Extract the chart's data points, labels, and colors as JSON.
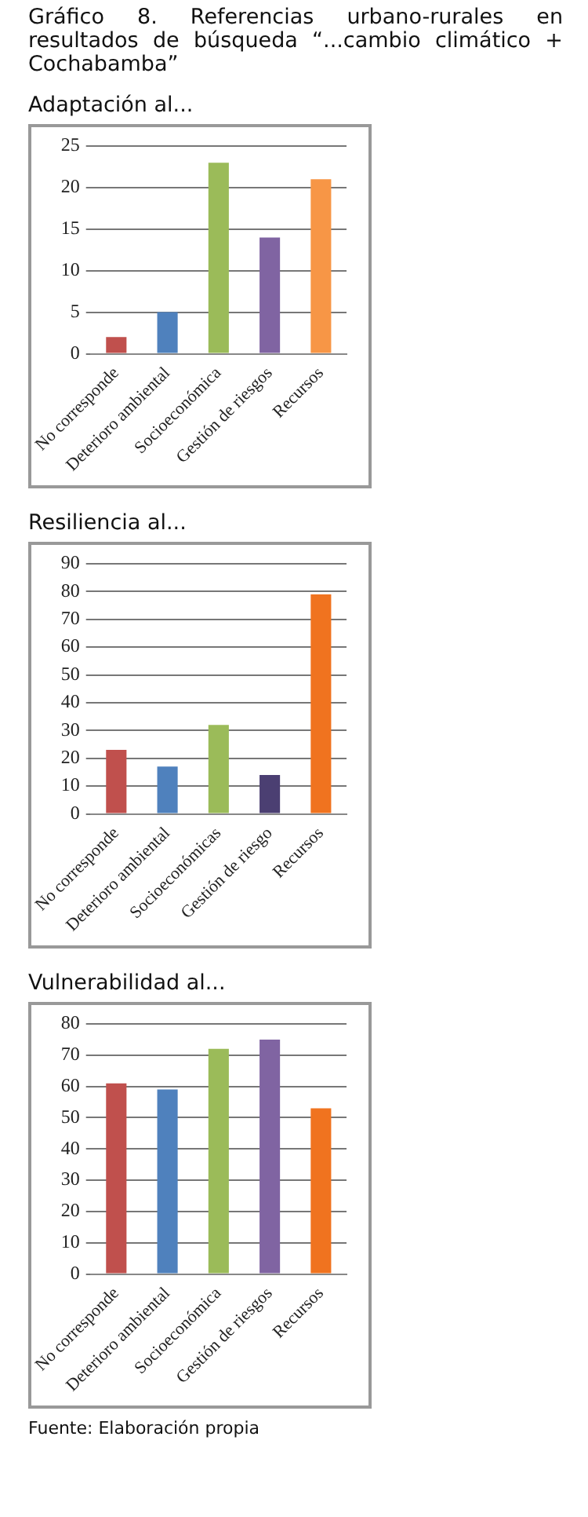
{
  "chart_data": [
    {
      "type": "bar",
      "title": "Gráfico 8. Referencias urbano-rurales en resultados de búsqueda “...cambio climático + Cochabamba”",
      "subtitle": "Adaptación al...",
      "categories": [
        "No corresponde",
        "Deterioro ambiental",
        "Socioeconómica",
        "Gestión de riesgos",
        "Recursos"
      ],
      "values": [
        2,
        5,
        23,
        14,
        21
      ],
      "colors": [
        "#c0504d",
        "#4f81bd",
        "#9bbb59",
        "#8064a2",
        "#f79646"
      ],
      "ylim": [
        0,
        25
      ],
      "yticks": [
        0,
        5,
        10,
        15,
        20,
        25
      ],
      "grid": "y",
      "legend": false
    },
    {
      "type": "bar",
      "subtitle": "Resiliencia al...",
      "categories": [
        "No corresponde",
        "Deterioro ambiental",
        "Socioeconómicas",
        "Gestión de riesgo",
        "Recursos"
      ],
      "values": [
        23,
        17,
        32,
        14,
        79
      ],
      "colors": [
        "#c0504d",
        "#4f81bd",
        "#9bbb59",
        "#4b3f72",
        "#f0731f"
      ],
      "ylim": [
        0,
        90
      ],
      "yticks": [
        0,
        10,
        20,
        30,
        40,
        50,
        60,
        70,
        80,
        90
      ],
      "grid": "y",
      "legend": false
    },
    {
      "type": "bar",
      "subtitle": "Vulnerabilidad al...",
      "categories": [
        "No corresponde",
        "Deterioro ambiental",
        "Socioeconómica",
        "Gestión de riesgos",
        "Recursos"
      ],
      "values": [
        61,
        59,
        72,
        75,
        53
      ],
      "colors": [
        "#c0504d",
        "#4f81bd",
        "#9bbb59",
        "#8064a2",
        "#f0731f"
      ],
      "ylim": [
        0,
        80
      ],
      "yticks": [
        0,
        10,
        20,
        30,
        40,
        50,
        60,
        70,
        80
      ],
      "grid": "y",
      "legend": false,
      "annotations": [
        "Fuente: Elaboración propia"
      ]
    }
  ]
}
